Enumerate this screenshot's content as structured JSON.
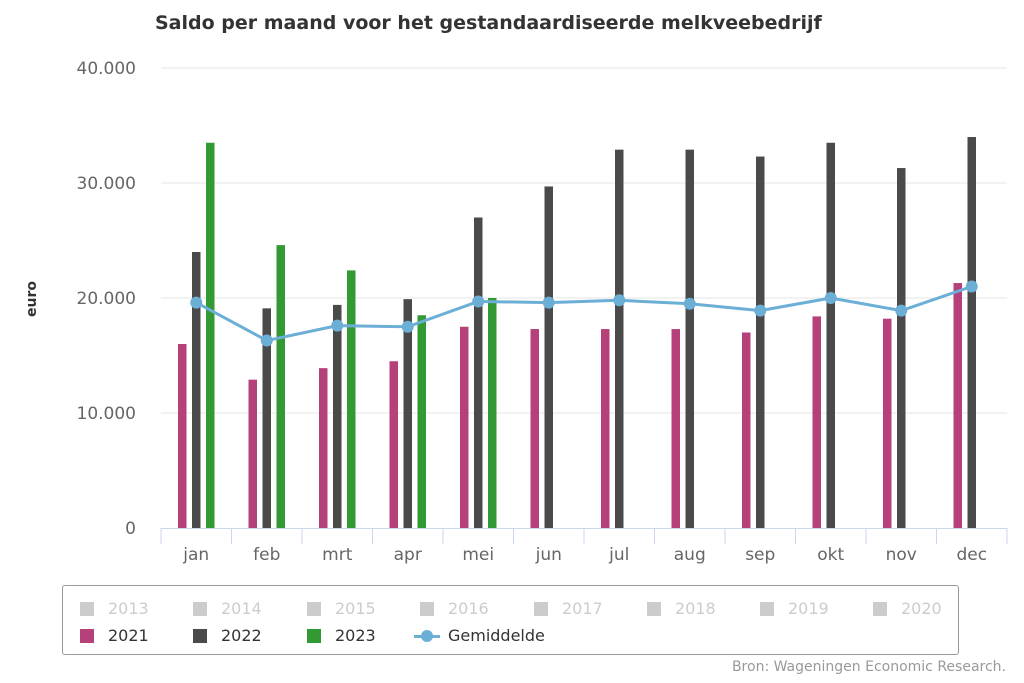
{
  "chart_data": {
    "type": "bar",
    "title": "Saldo per maand voor het gestandaardiseerde melkveebedrijf",
    "ylabel": "euro",
    "xlabel": "",
    "ylim": [
      0,
      40000
    ],
    "yticks": [
      0,
      10000,
      20000,
      30000,
      40000
    ],
    "ytick_labels": [
      "0",
      "10.000",
      "20.000",
      "30.000",
      "40.000"
    ],
    "grid": true,
    "legend_position": "bottom",
    "categories": [
      "jan",
      "feb",
      "mrt",
      "apr",
      "mei",
      "jun",
      "jul",
      "aug",
      "sep",
      "okt",
      "nov",
      "dec"
    ],
    "series": [
      {
        "name": "2021",
        "type": "bar",
        "color": "#b5407a",
        "values": [
          16000,
          12900,
          13900,
          14500,
          17500,
          17300,
          17300,
          17300,
          17000,
          18400,
          18200,
          21300
        ]
      },
      {
        "name": "2022",
        "type": "bar",
        "color": "#4a4a4a",
        "values": [
          24000,
          19100,
          19400,
          19900,
          27000,
          29700,
          32900,
          32900,
          32300,
          33500,
          31300,
          34000
        ]
      },
      {
        "name": "2023",
        "type": "bar",
        "color": "#339933",
        "values": [
          33500,
          24600,
          22400,
          18500,
          20000,
          null,
          null,
          null,
          null,
          null,
          null,
          null
        ]
      },
      {
        "name": "Gemiddelde",
        "type": "line",
        "color": "#6baed6",
        "values": [
          19600,
          16300,
          17600,
          17500,
          19700,
          19600,
          19800,
          19500,
          18900,
          20000,
          18900,
          21000
        ]
      }
    ],
    "hidden_series": [
      "2013",
      "2014",
      "2015",
      "2016",
      "2017",
      "2018",
      "2019",
      "2020"
    ]
  },
  "legend": {
    "hidden_color": "#cccccc",
    "hidden_items": [
      "2013",
      "2014",
      "2015",
      "2016",
      "2017",
      "2018",
      "2019",
      "2020"
    ],
    "active_items": [
      {
        "label": "2021",
        "color": "#b5407a"
      },
      {
        "label": "2022",
        "color": "#4a4a4a"
      },
      {
        "label": "2023",
        "color": "#339933"
      }
    ],
    "line_item": {
      "label": "Gemiddelde",
      "color": "#6baed6"
    }
  },
  "source": "Bron: Wageningen Economic Research."
}
